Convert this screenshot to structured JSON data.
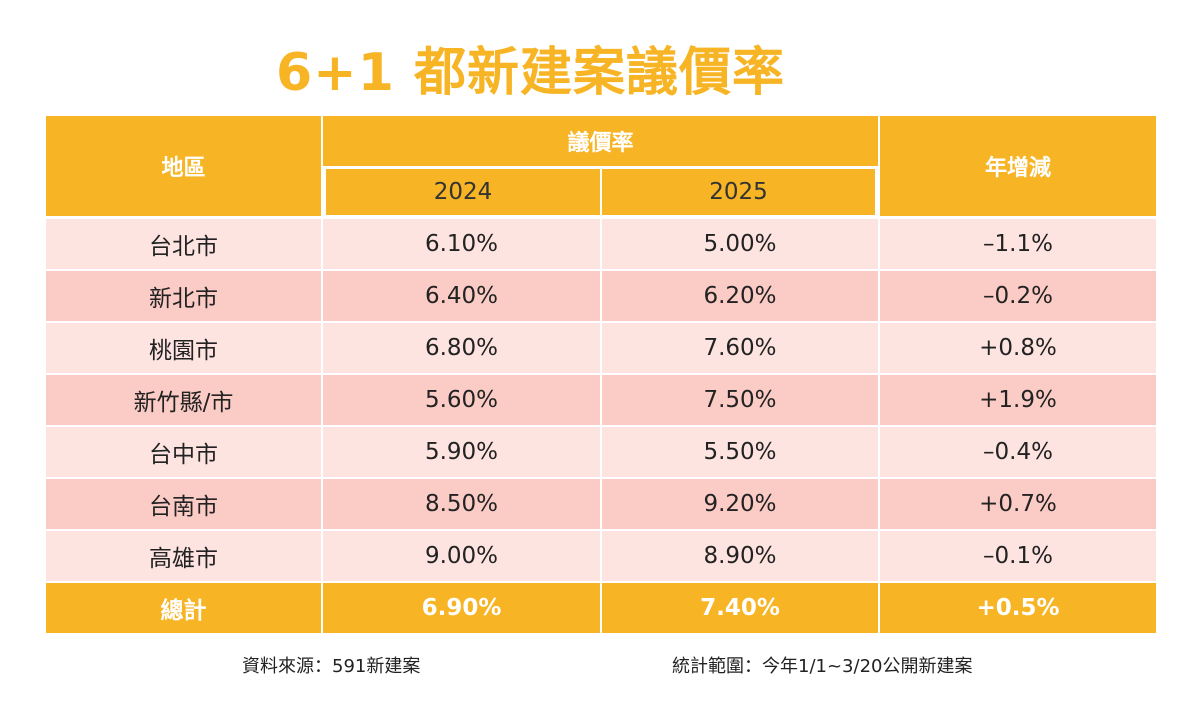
{
  "title": "6+1 都新建案議價率",
  "colors": {
    "accent": "#f7b424",
    "row_light": "#fde4e0",
    "row_dark": "#fbcbc5"
  },
  "headers": {
    "region": "地區",
    "rate": "議價率",
    "year1": "2024",
    "year2": "2025",
    "change": "年增減"
  },
  "rows": [
    {
      "region": "台北市",
      "y2024": "6.10%",
      "y2025": "5.00%",
      "change": "–1.1%"
    },
    {
      "region": "新北市",
      "y2024": "6.40%",
      "y2025": "6.20%",
      "change": "–0.2%"
    },
    {
      "region": "桃園市",
      "y2024": "6.80%",
      "y2025": "7.60%",
      "change": "+0.8%"
    },
    {
      "region": "新竹縣/市",
      "y2024": "5.60%",
      "y2025": "7.50%",
      "change": "+1.9%"
    },
    {
      "region": "台中市",
      "y2024": "5.90%",
      "y2025": "5.50%",
      "change": "–0.4%"
    },
    {
      "region": "台南市",
      "y2024": "8.50%",
      "y2025": "9.20%",
      "change": "+0.7%"
    },
    {
      "region": "高雄市",
      "y2024": "9.00%",
      "y2025": "8.90%",
      "change": "–0.1%"
    }
  ],
  "total": {
    "region": "總計",
    "y2024": "6.90%",
    "y2025": "7.40%",
    "change": "+0.5%"
  },
  "footer": {
    "source": "資料來源：591新建案",
    "scope": "統計範圍：今年1/1~3/20公開新建案"
  },
  "chart_data": {
    "type": "table",
    "title": "6+1 都新建案議價率",
    "columns": [
      "地區",
      "2024",
      "2025",
      "年增減"
    ],
    "categories": [
      "台北市",
      "新北市",
      "桃園市",
      "新竹縣/市",
      "台中市",
      "台南市",
      "高雄市",
      "總計"
    ],
    "series": [
      {
        "name": "2024",
        "values": [
          6.1,
          6.4,
          6.8,
          5.6,
          5.9,
          8.5,
          9.0,
          6.9
        ]
      },
      {
        "name": "2025",
        "values": [
          5.0,
          6.2,
          7.6,
          7.5,
          5.5,
          9.2,
          8.9,
          7.4
        ]
      },
      {
        "name": "年增減",
        "values": [
          -1.1,
          -0.2,
          0.8,
          1.9,
          -0.4,
          0.7,
          -0.1,
          0.5
        ]
      }
    ]
  }
}
